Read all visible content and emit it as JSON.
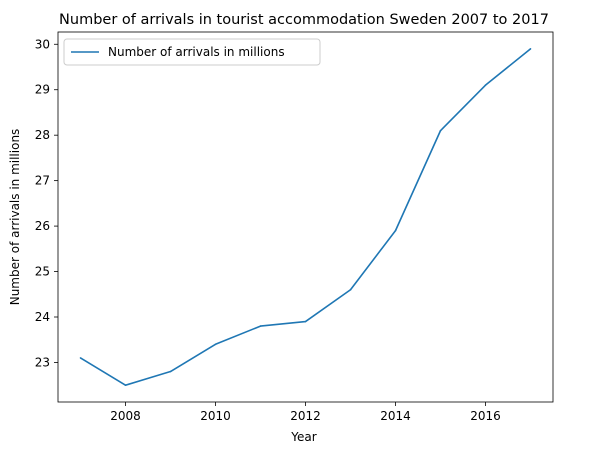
{
  "chart_data": {
    "type": "line",
    "title": "Number of arrivals in tourist accommodation Sweden 2007 to 2017",
    "xlabel": "Year",
    "ylabel": "Number of arrivals in millions",
    "x": [
      2007,
      2008,
      2009,
      2010,
      2011,
      2012,
      2013,
      2014,
      2015,
      2016,
      2017
    ],
    "series": [
      {
        "name": "Number of arrivals in millions",
        "values": [
          23.1,
          22.5,
          22.8,
          23.4,
          23.8,
          23.9,
          24.6,
          25.9,
          28.1,
          29.1,
          29.9
        ],
        "color": "#1f77b4"
      }
    ],
    "xlim": [
      2006.5,
      2017.5
    ],
    "ylim": [
      22.13,
      30.27
    ],
    "xticks": [
      2008,
      2010,
      2012,
      2014,
      2016
    ],
    "yticks": [
      23,
      24,
      25,
      26,
      27,
      28,
      29,
      30
    ],
    "grid": false,
    "legend_position": "top-left"
  }
}
